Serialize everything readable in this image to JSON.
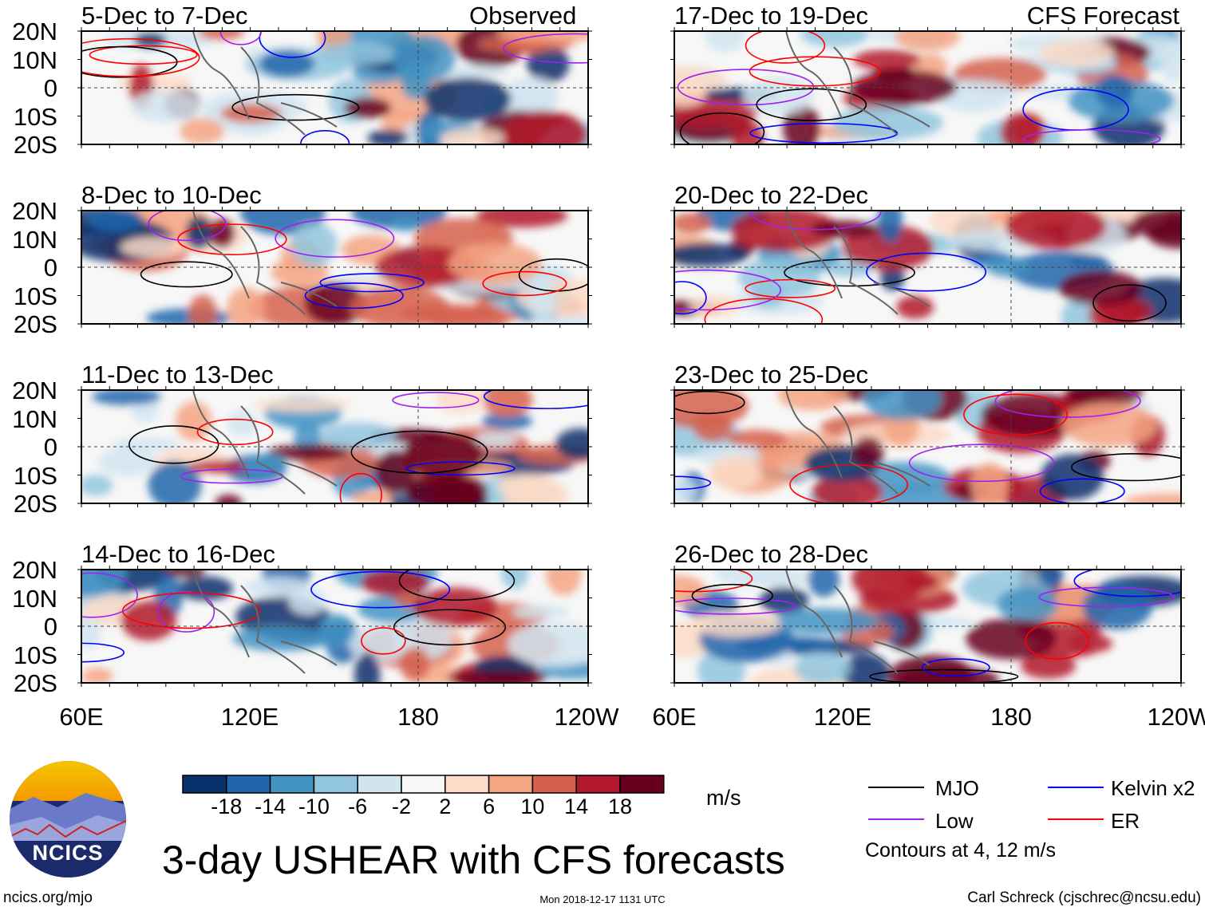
{
  "figure_title": "3-day USHEAR with CFS forecasts",
  "column_labels": {
    "left": "Observed",
    "right": "CFS Forecast"
  },
  "panels": {
    "left": [
      "5-Dec to 7-Dec",
      "8-Dec to 10-Dec",
      "11-Dec to 13-Dec",
      "14-Dec to 16-Dec"
    ],
    "right": [
      "17-Dec to 19-Dec",
      "20-Dec to 22-Dec",
      "23-Dec to 25-Dec",
      "26-Dec to 28-Dec"
    ]
  },
  "lat_labels": [
    "20N",
    "10N",
    "0",
    "10S",
    "20S"
  ],
  "lon_labels": [
    "60E",
    "120E",
    "180",
    "120W"
  ],
  "colorbar": {
    "labels": [
      "-18",
      "-14",
      "-10",
      "-6",
      "-2",
      "2",
      "6",
      "10",
      "14",
      "18"
    ],
    "colors": [
      "#08306b",
      "#2166ac",
      "#4393c3",
      "#92c5de",
      "#d1e5f0",
      "#f7f7f7",
      "#fddbc7",
      "#f4a582",
      "#d6604d",
      "#b2182b",
      "#67001f"
    ],
    "units": "m/s"
  },
  "legend": {
    "items": [
      {
        "label": "MJO",
        "color": "#000000"
      },
      {
        "label": "Kelvin x2",
        "color": "#0000ff"
      },
      {
        "label": "Low",
        "color": "#a020f0"
      },
      {
        "label": "ER",
        "color": "#ff0000"
      }
    ],
    "note": "Contours at 4, 12 m/s"
  },
  "logo_text": "NCICS",
  "footer": {
    "url": "ncics.org/mjo",
    "timestamp": "Mon 2018-12-17 1131 UTC",
    "credit": "Carl Schreck (cjschrec@ncsu.edu)"
  },
  "chart_data": {
    "type": "heatmap",
    "title": "3-day USHEAR with CFS forecasts",
    "variable": "USHEAR",
    "units": "m/s",
    "xlim": [
      "60E",
      "120W"
    ],
    "ylim": [
      "20S",
      "20N"
    ],
    "color_levels": [
      -18,
      -14,
      -10,
      -6,
      -2,
      2,
      6,
      10,
      14,
      18
    ],
    "contour_levels": [
      4,
      12
    ]
  }
}
